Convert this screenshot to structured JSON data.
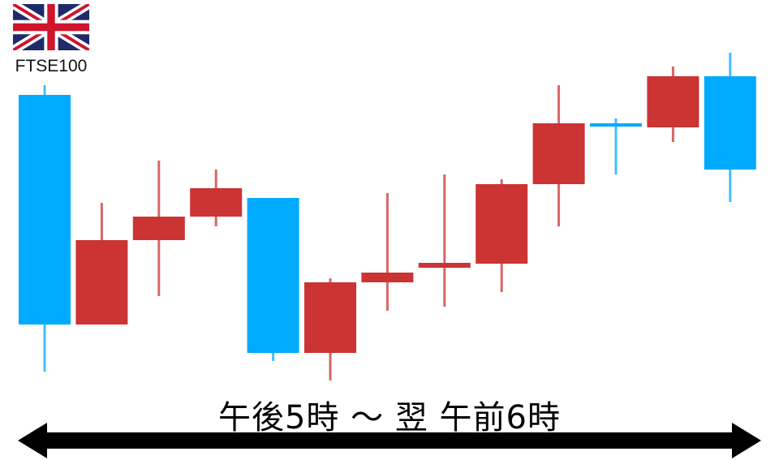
{
  "header": {
    "flag_icon": "uk-flag-icon",
    "index_name": "FTSE100"
  },
  "footer": {
    "period_label": "午後5時 ～ 翌 午前6時",
    "arrow_icon": "double-headed-arrow-icon"
  },
  "colors": {
    "up": "#cc3333",
    "down": "#00aaff",
    "arrow": "#000000"
  },
  "chart_data": {
    "type": "candlestick",
    "title": "",
    "xlabel": "",
    "ylabel": "",
    "grid": false,
    "legend": "none",
    "ylim": [
      0,
      105
    ],
    "candles": [
      {
        "open": 90.75,
        "high": 93.75,
        "low": 5.5,
        "close": 20
      },
      {
        "open": 20,
        "high": 57.5,
        "low": 20,
        "close": 46
      },
      {
        "open": 46,
        "high": 70.5,
        "low": 28.75,
        "close": 53.25
      },
      {
        "open": 53.25,
        "high": 67.75,
        "low": 50.25,
        "close": 62
      },
      {
        "open": 59,
        "high": 59,
        "low": 8.75,
        "close": 11.25
      },
      {
        "open": 11.25,
        "high": 34.25,
        "low": 2.75,
        "close": 33
      },
      {
        "open": 33,
        "high": 60.5,
        "low": 24.25,
        "close": 36
      },
      {
        "open": 37.5,
        "high": 66.25,
        "low": 25.5,
        "close": 39
      },
      {
        "open": 38.75,
        "high": 64.75,
        "low": 30,
        "close": 63.25
      },
      {
        "open": 63.25,
        "high": 93.75,
        "low": 50.25,
        "close": 82
      },
      {
        "open": 82,
        "high": 83.5,
        "low": 66.25,
        "close": 81
      },
      {
        "open": 80.75,
        "high": 99.5,
        "low": 76.25,
        "close": 96.5
      },
      {
        "open": 96.5,
        "high": 103.75,
        "low": 57.75,
        "close": 67.75
      }
    ]
  }
}
